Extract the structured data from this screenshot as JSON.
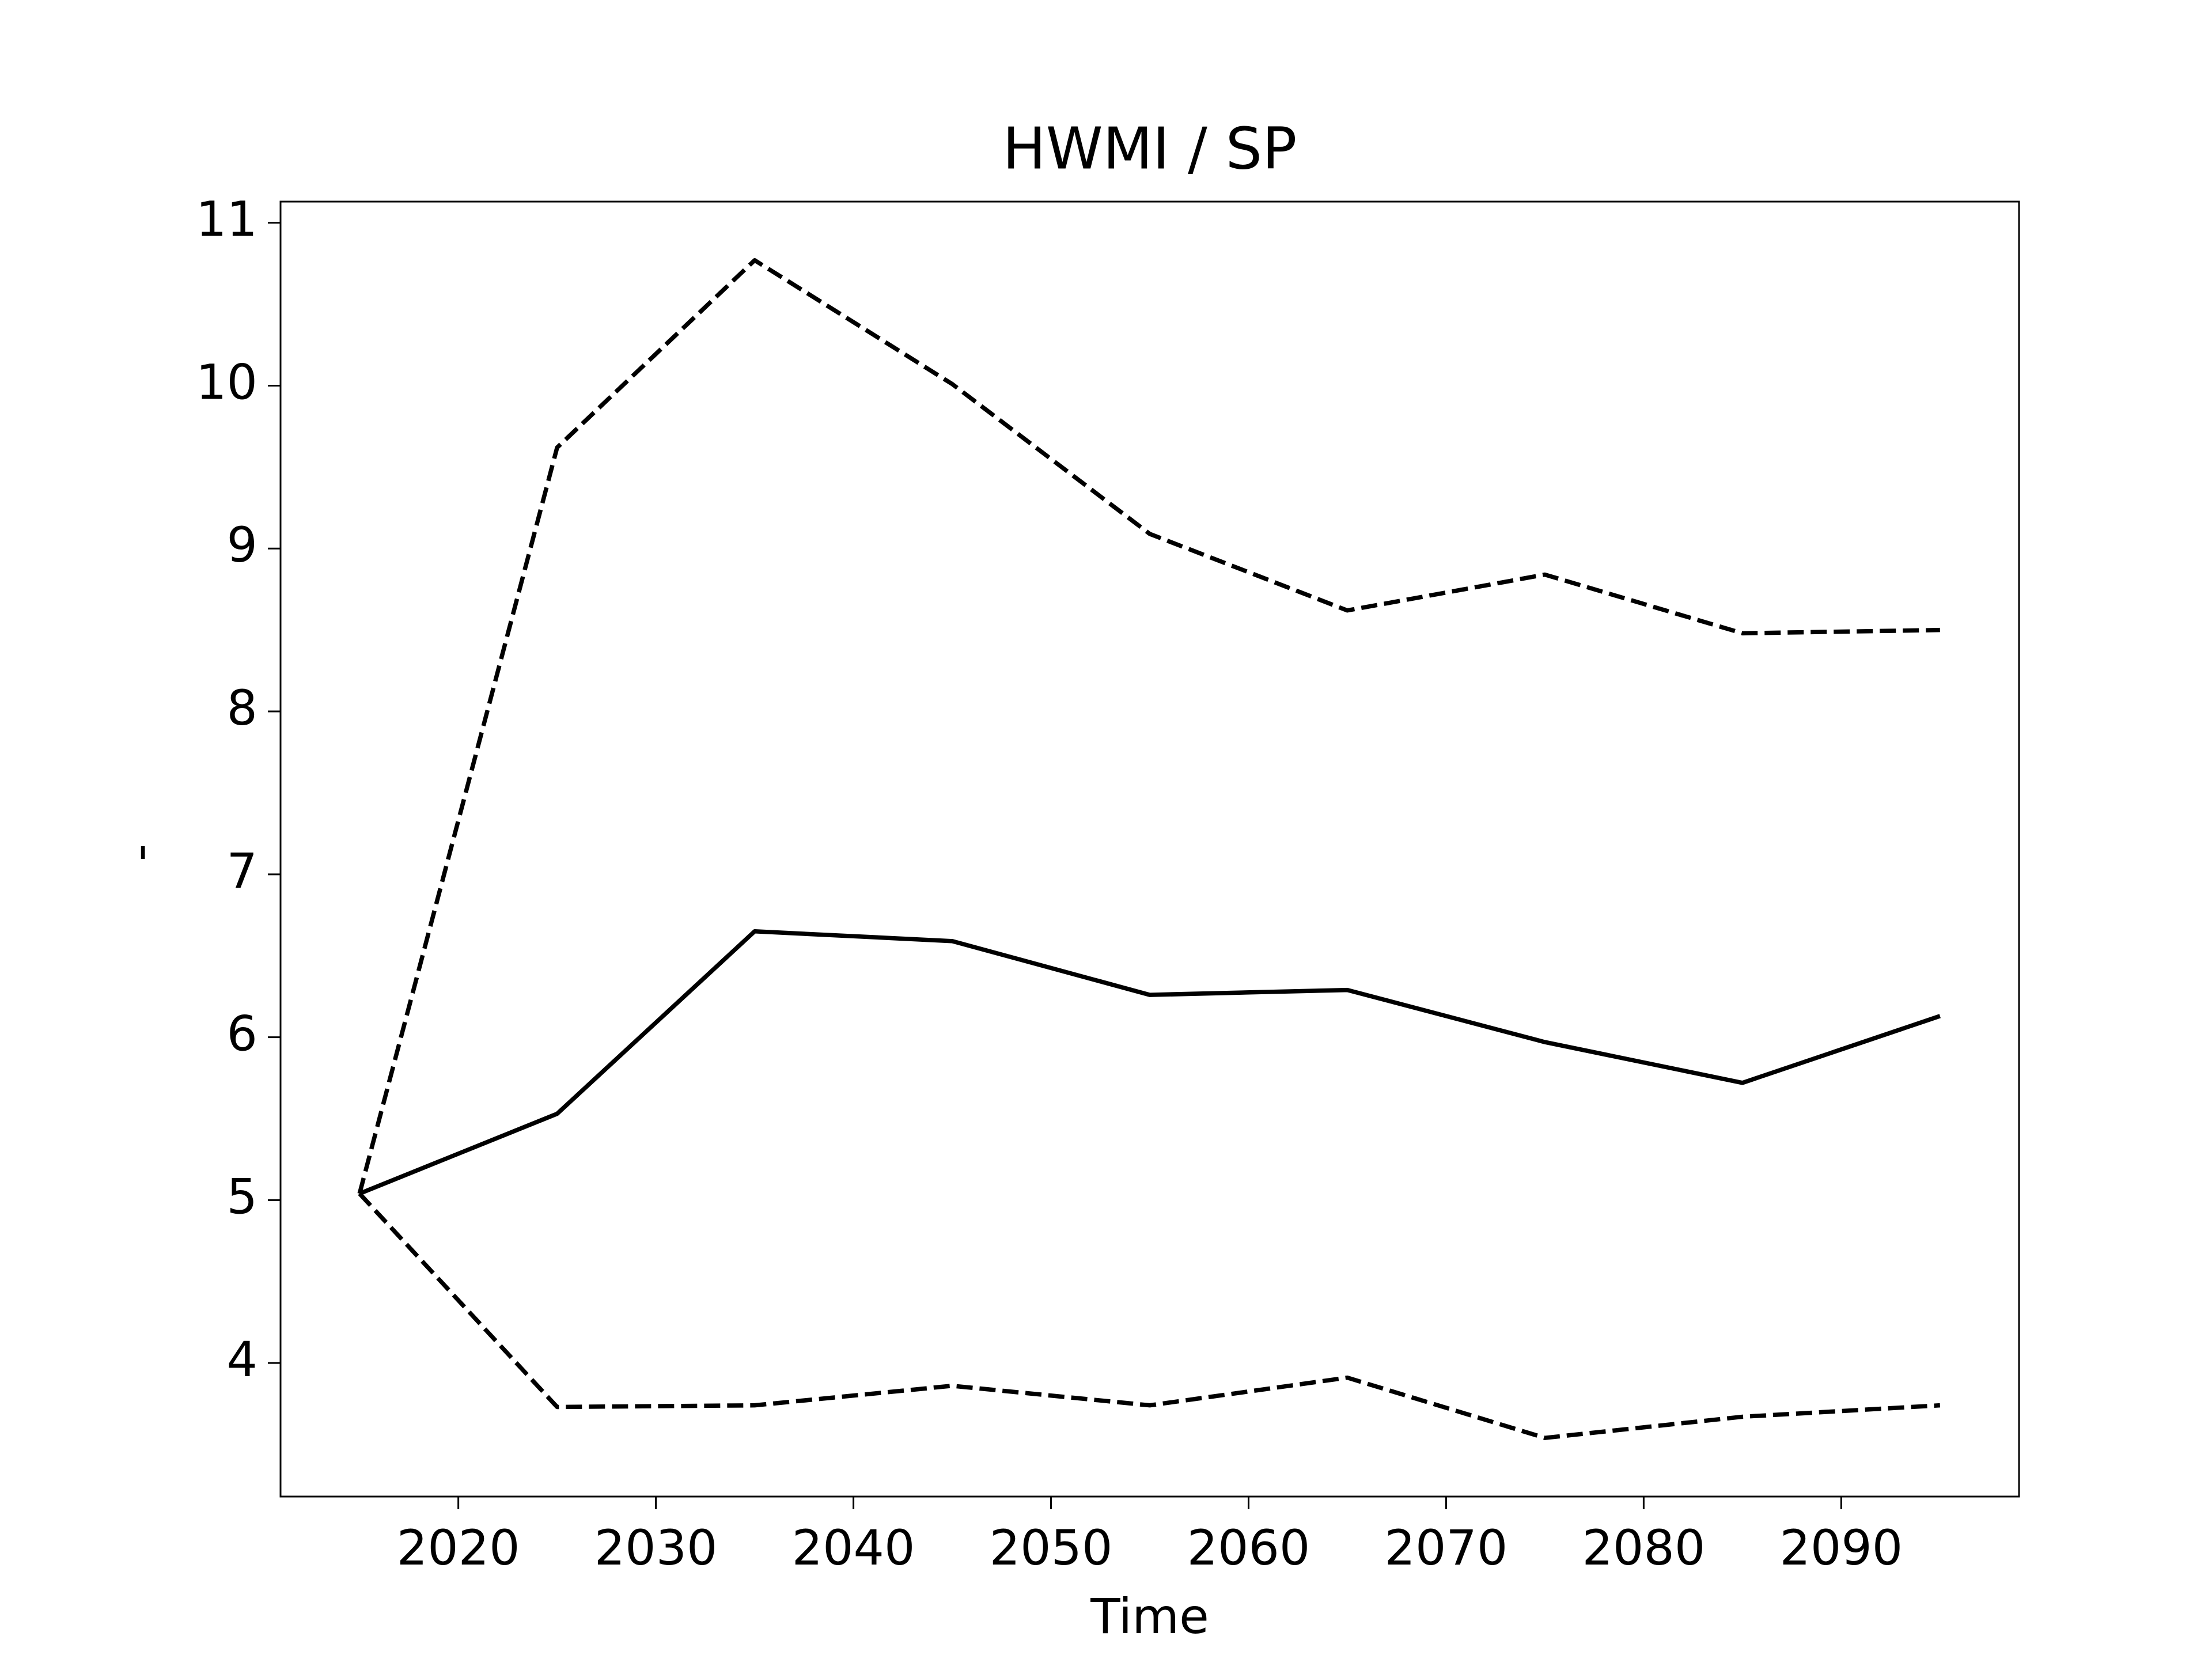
{
  "chart_data": {
    "type": "line",
    "title": "HWMI / SP",
    "xlabel": "Time",
    "ylabel": "-",
    "x": [
      2015,
      2025,
      2035,
      2045,
      2055,
      2065,
      2075,
      2085,
      2095
    ],
    "series": [
      {
        "color": "#000000",
        "dash": false,
        "values": [
          5.04,
          5.53,
          6.65,
          6.59,
          6.26,
          6.29,
          5.97,
          5.72,
          6.13
        ]
      },
      {
        "color": "#000000",
        "dash": true,
        "values": [
          5.04,
          9.62,
          10.77,
          10.01,
          9.09,
          8.62,
          8.84,
          8.48,
          8.5
        ]
      },
      {
        "color": "#000000",
        "dash": true,
        "values": [
          5.04,
          3.73,
          3.74,
          3.86,
          3.74,
          3.91,
          3.54,
          3.67,
          3.74
        ]
      }
    ],
    "xlim": [
      2011,
      2099
    ],
    "xticks": [
      2020,
      2030,
      2040,
      2050,
      2060,
      2070,
      2080,
      2090
    ],
    "ylim": [
      3.18,
      11.13
    ],
    "yticks": [
      4,
      5,
      6,
      7,
      8,
      9,
      10,
      11
    ],
    "grid": false
  }
}
